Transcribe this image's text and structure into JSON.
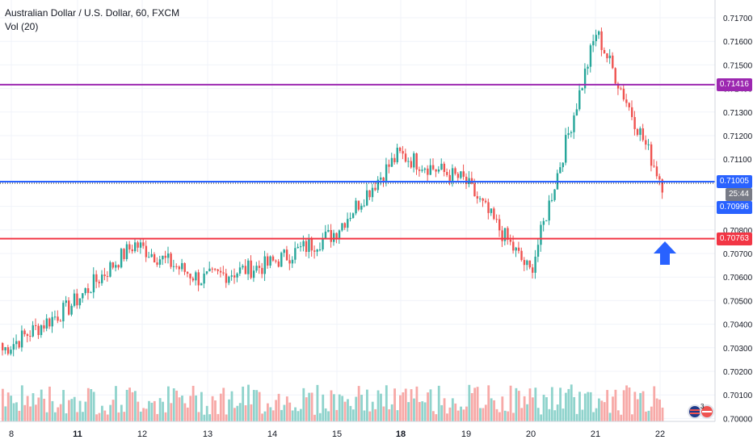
{
  "header": {
    "title": "Australian Dollar / U.S. Dollar, 60, FXCM",
    "volume_label": "Vol (20)"
  },
  "colors": {
    "up": "#26a69a",
    "down": "#ef5350",
    "vol_up": "#8fd3cc",
    "vol_down": "#f7a9a7",
    "resistance": "#9c27b0",
    "support": "#f23645",
    "current": "#2962ff",
    "arrow": "#2962ff",
    "grid": "#f0f3fa"
  },
  "price_axis": {
    "ticks": [
      "0.71700",
      "0.71600",
      "0.71500",
      "0.71400",
      "0.71300",
      "0.71200",
      "0.71100",
      "0.71000",
      "0.70900",
      "0.70800",
      "0.70700",
      "0.70600",
      "0.70500",
      "0.70400",
      "0.70300",
      "0.70200",
      "0.70100",
      "0.70000"
    ],
    "min": 0.7,
    "max": 0.717
  },
  "levels": {
    "resistance": {
      "value": 0.71416,
      "label": "0.71416"
    },
    "current": {
      "value": 0.71005,
      "label": "0.71005"
    },
    "countdown": "25:44",
    "last": {
      "label": "0.70996"
    },
    "support": {
      "value": 0.70763,
      "label": "0.70763"
    }
  },
  "time_axis": {
    "labels": [
      {
        "text": "8",
        "bold": false
      },
      {
        "text": "11",
        "bold": true
      },
      {
        "text": "12",
        "bold": false
      },
      {
        "text": "13",
        "bold": false
      },
      {
        "text": "14",
        "bold": false
      },
      {
        "text": "15",
        "bold": false
      },
      {
        "text": "18",
        "bold": true
      },
      {
        "text": "19",
        "bold": false
      },
      {
        "text": "20",
        "bold": false
      },
      {
        "text": "21",
        "bold": false
      },
      {
        "text": "22",
        "bold": false
      }
    ]
  },
  "events_badge": {
    "count": "3"
  },
  "chart_data": {
    "type": "candlestick",
    "title": "Australian Dollar / U.S. Dollar, 60, FXCM",
    "ylim": [
      0.7,
      0.717
    ],
    "close_path": [
      {
        "day": "8",
        "close": 0.7029
      },
      {
        "day": "11",
        "close": 0.7047
      },
      {
        "day": "12",
        "close": 0.7074
      },
      {
        "day": "13",
        "close": 0.7059
      },
      {
        "day": "14",
        "close": 0.7065
      },
      {
        "day": "15",
        "close": 0.7078
      },
      {
        "day": "18",
        "close": 0.7112
      },
      {
        "day": "19",
        "close": 0.7101
      },
      {
        "day": "20",
        "close": 0.7062
      },
      {
        "day": "21",
        "close": 0.7164
      },
      {
        "day": "22",
        "close": 0.70996
      }
    ]
  }
}
